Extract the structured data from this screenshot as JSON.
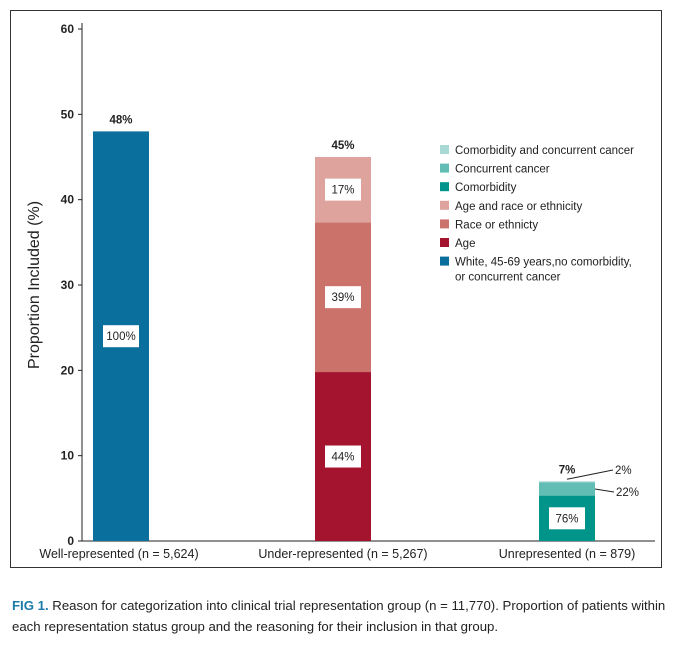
{
  "chart_data": {
    "type": "bar",
    "stacked": true,
    "ylabel": "Proportion Included (%)",
    "ylim": [
      0,
      60
    ],
    "yticks": [
      0,
      10,
      20,
      30,
      40,
      50,
      60
    ],
    "grid": false,
    "legend_position": "top-right",
    "categories": [
      "Well-represented (n = 5,624)",
      "Under-represented (n = 5,267)",
      "Unrepresented (n = 879)"
    ],
    "totals": [
      48,
      45,
      7
    ],
    "total_labels": [
      "48%",
      "45%",
      "7%"
    ],
    "series": [
      {
        "name": "White, 45-69 years,no comorbidity, or concurrent cancer",
        "color": "#0a6f9c",
        "values": [
          48,
          0,
          0
        ],
        "labels": [
          "100%",
          "",
          ""
        ]
      },
      {
        "name": "Age",
        "color": "#a5142f",
        "values": [
          0,
          19.8,
          0
        ],
        "labels": [
          "",
          "44%",
          ""
        ]
      },
      {
        "name": "Race or ethnicty",
        "color": "#cb736b",
        "values": [
          0,
          17.55,
          0
        ],
        "labels": [
          "",
          "39%",
          ""
        ]
      },
      {
        "name": "Age and race or ethnicity",
        "color": "#dea39d",
        "values": [
          0,
          7.65,
          0
        ],
        "labels": [
          "",
          "17%",
          ""
        ]
      },
      {
        "name": "Comorbidity",
        "color": "#00948a",
        "values": [
          0,
          0,
          5.32
        ],
        "labels": [
          "",
          "",
          "76%"
        ]
      },
      {
        "name": "Concurrent cancer",
        "color": "#62bdb5",
        "values": [
          0,
          0,
          1.54
        ],
        "labels": [
          "",
          "",
          "22%"
        ]
      },
      {
        "name": "Comorbidity and concurrent cancer",
        "color": "#a9d9d5",
        "values": [
          0,
          0,
          0.14
        ],
        "labels": [
          "",
          "",
          "2%"
        ]
      }
    ]
  },
  "caption": {
    "fig": "FIG 1.",
    "text": " Reason for categorization into clinical trial representation group (n = 11,770). Proportion of patients within each representation status group and the reasoning for their inclusion in that group."
  }
}
